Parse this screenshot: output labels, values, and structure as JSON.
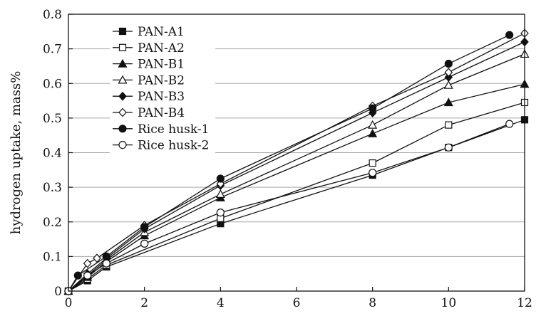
{
  "chart_data": {
    "type": "line",
    "title": "",
    "xlabel": "",
    "ylabel": "hydrogen uptake, mass%",
    "xlim": [
      0,
      12
    ],
    "ylim": [
      0,
      0.8
    ],
    "xticks": [
      "0",
      "2",
      "4",
      "6",
      "8",
      "10",
      "12"
    ],
    "yticks": [
      "0",
      "0.1",
      "0.2",
      "0.3",
      "0.4",
      "0.5",
      "0.6",
      "0.7",
      "0.8"
    ],
    "grid": "horizontal",
    "legend_position": "top-left",
    "series": [
      {
        "name": "PAN-A1",
        "marker": "square-filled",
        "points": [
          [
            0,
            0
          ],
          [
            0.5,
            0.03
          ],
          [
            1,
            0.07
          ],
          [
            4,
            0.195
          ],
          [
            8,
            0.335
          ],
          [
            10,
            0.415
          ],
          [
            12,
            0.495
          ]
        ]
      },
      {
        "name": "PAN-A2",
        "marker": "square-open",
        "points": [
          [
            0,
            0
          ],
          [
            0.5,
            0.035
          ],
          [
            1,
            0.075
          ],
          [
            4,
            0.21
          ],
          [
            8,
            0.37
          ],
          [
            10,
            0.48
          ],
          [
            12,
            0.545
          ]
        ]
      },
      {
        "name": "PAN-B1",
        "marker": "triangle-filled",
        "points": [
          [
            0,
            0
          ],
          [
            0.5,
            0.04
          ],
          [
            1,
            0.085
          ],
          [
            2,
            0.16
          ],
          [
            4,
            0.27
          ],
          [
            8,
            0.455
          ],
          [
            10,
            0.545
          ],
          [
            12,
            0.598
          ]
        ]
      },
      {
        "name": "PAN-B2",
        "marker": "triangle-open",
        "points": [
          [
            0,
            0
          ],
          [
            0.5,
            0.045
          ],
          [
            1,
            0.09
          ],
          [
            2,
            0.17
          ],
          [
            4,
            0.28
          ],
          [
            8,
            0.48
          ],
          [
            10,
            0.595
          ],
          [
            12,
            0.685
          ]
        ]
      },
      {
        "name": "PAN-B3",
        "marker": "diamond-filled",
        "points": [
          [
            0,
            0
          ],
          [
            0.5,
            0.05
          ],
          [
            1,
            0.095
          ],
          [
            2,
            0.18
          ],
          [
            4,
            0.305
          ],
          [
            8,
            0.515
          ],
          [
            10,
            0.618
          ],
          [
            12,
            0.72
          ]
        ]
      },
      {
        "name": "PAN-B4",
        "marker": "diamond-open",
        "points": [
          [
            0,
            0
          ],
          [
            0.5,
            0.08
          ],
          [
            0.75,
            0.095
          ],
          [
            2,
            0.19
          ],
          [
            4,
            0.31
          ],
          [
            8,
            0.535
          ],
          [
            10,
            0.632
          ],
          [
            12,
            0.745
          ]
        ]
      },
      {
        "name": "Rice husk-1",
        "marker": "circle-filled",
        "points": [
          [
            0,
            0
          ],
          [
            0.25,
            0.045
          ],
          [
            1,
            0.1
          ],
          [
            2,
            0.185
          ],
          [
            4,
            0.325
          ],
          [
            8,
            0.528
          ],
          [
            10,
            0.657
          ],
          [
            11.6,
            0.74
          ]
        ]
      },
      {
        "name": "Rice husk-2",
        "marker": "circle-open",
        "points": [
          [
            0,
            0
          ],
          [
            0.5,
            0.045
          ],
          [
            1,
            0.08
          ],
          [
            2,
            0.137
          ],
          [
            4,
            0.227
          ],
          [
            8,
            0.342
          ],
          [
            10,
            0.415
          ],
          [
            11.6,
            0.483
          ]
        ]
      }
    ]
  }
}
